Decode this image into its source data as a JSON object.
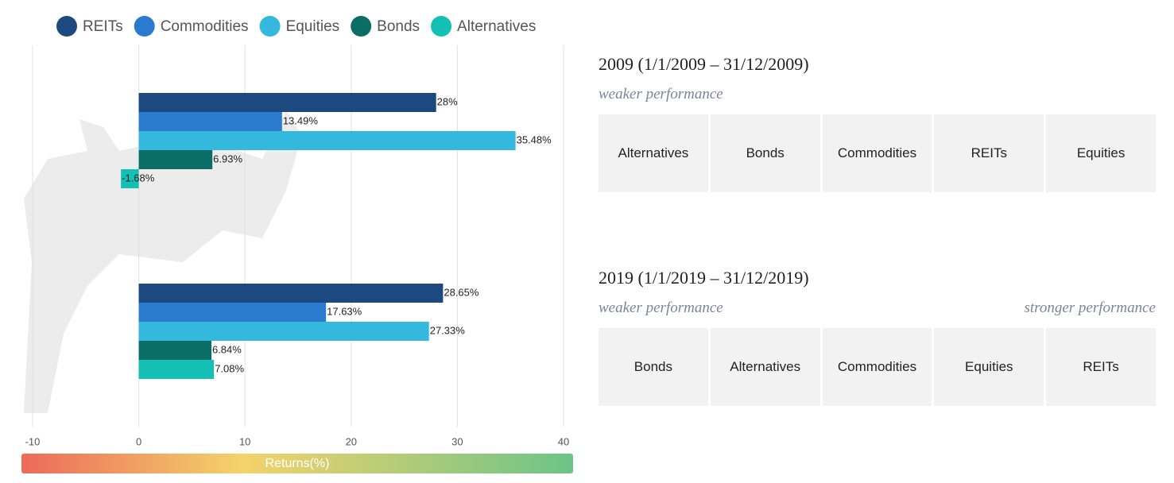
{
  "chart_data": {
    "type": "bar",
    "orientation": "horizontal",
    "categories": [
      null,
      null
    ],
    "series": [
      {
        "name": "REITs",
        "color": "#1c4a80",
        "values": [
          28,
          28.65
        ],
        "value_labels": [
          "28%",
          "28.65%"
        ]
      },
      {
        "name": "Commodities",
        "color": "#2a7bd0",
        "values": [
          13.49,
          17.63
        ],
        "value_labels": [
          "13.49%",
          "17.63%"
        ]
      },
      {
        "name": "Equities",
        "color": "#35b8de",
        "values": [
          35.48,
          27.33
        ],
        "value_labels": [
          "35.48%",
          "27.33%"
        ]
      },
      {
        "name": "Bonds",
        "color": "#0b6e66",
        "values": [
          6.93,
          6.84
        ],
        "value_labels": [
          "6.93%",
          "6.84%"
        ]
      },
      {
        "name": "Alternatives",
        "color": "#14c0b4",
        "values": [
          -1.68,
          7.08
        ],
        "value_labels": [
          "-1.68%",
          "7.08%"
        ]
      }
    ],
    "xlim": [
      -10,
      40
    ],
    "xticks": [
      -10,
      0,
      10,
      20,
      30,
      40
    ],
    "xlabel": "Returns(%)",
    "grid": true,
    "legend": "top"
  },
  "panels": [
    {
      "title": "2009 (1/1/2009 – 31/12/2009)",
      "weaker_label": "weaker performance",
      "ranking": [
        "Alternatives",
        "Bonds",
        "Commodities",
        "REITs",
        "Equities"
      ]
    },
    {
      "title": "2019 (1/1/2019 – 31/12/2019)",
      "weaker_label": "weaker performance",
      "stronger_label": "stronger performance",
      "ranking": [
        "Bonds",
        "Alternatives",
        "Commodities",
        "Equities",
        "REITs"
      ]
    }
  ]
}
